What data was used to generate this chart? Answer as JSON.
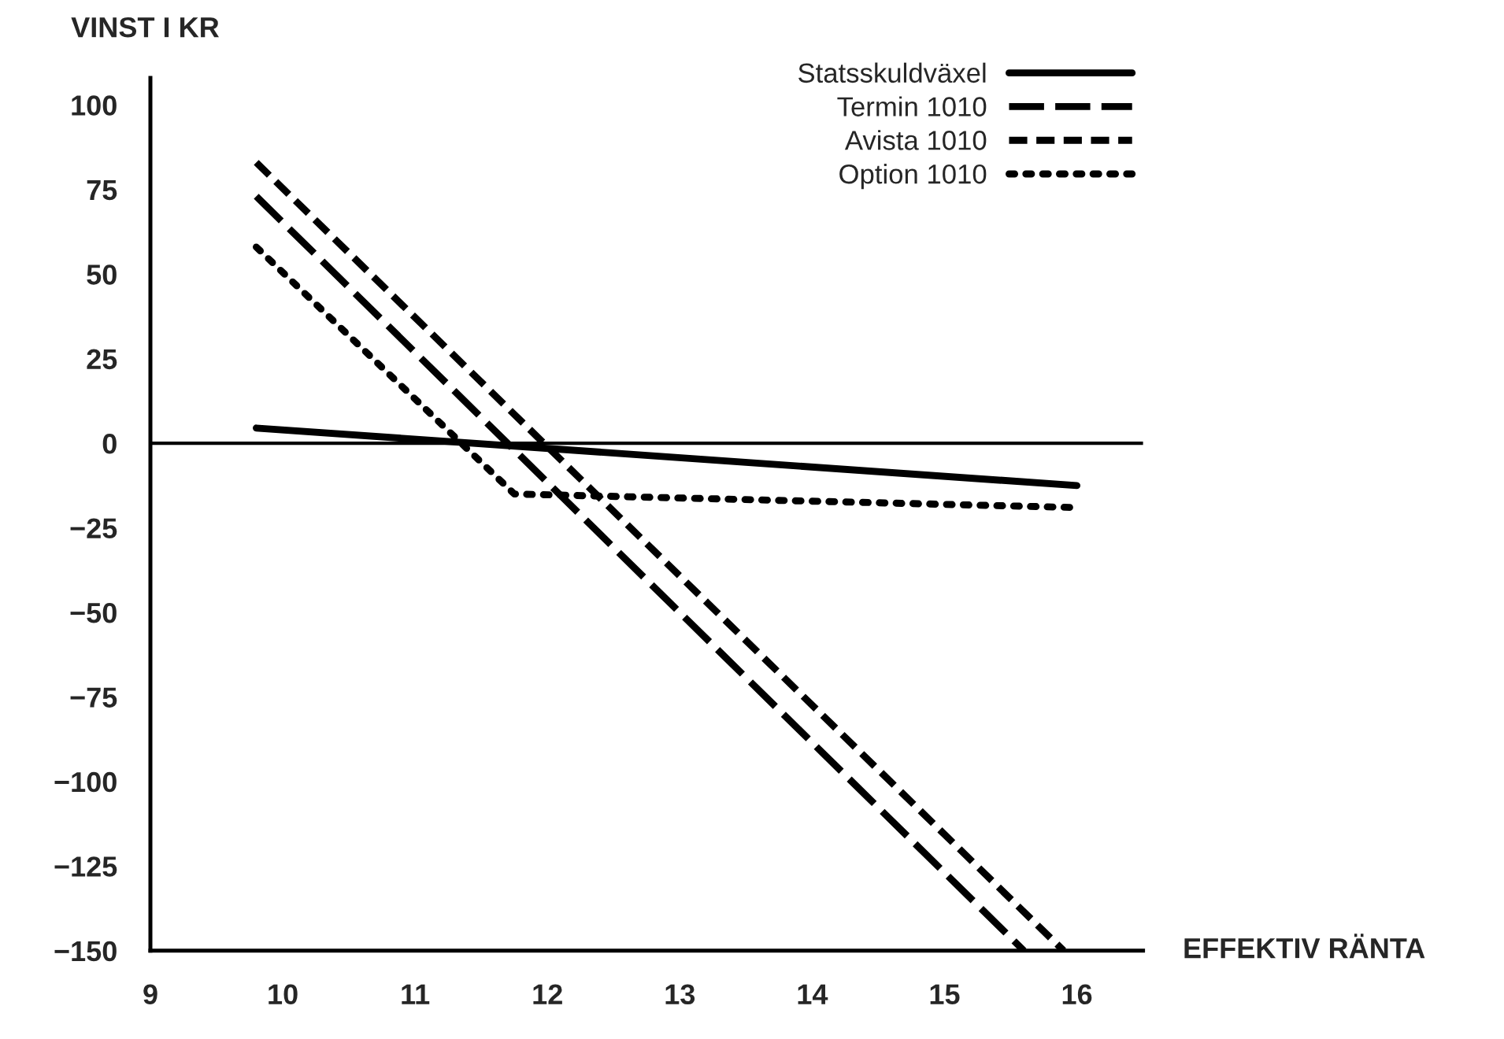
{
  "chart_data": {
    "type": "line",
    "xlabel": "EFFEKTIV RÄNTA",
    "ylabel": "VINST I KR",
    "xlim": [
      9,
      16.5
    ],
    "xticks": [
      9,
      10,
      11,
      12,
      13,
      14,
      15,
      16
    ],
    "ylim": [
      -150,
      108
    ],
    "yticks": [
      -150,
      -125,
      -100,
      -75,
      -50,
      -25,
      0,
      25,
      50,
      75,
      100
    ],
    "grid": false,
    "legend": "top right",
    "ref_lines": [
      {
        "axis": "y",
        "value": 0,
        "color": "#000000",
        "line_style": "solid"
      }
    ],
    "series": [
      {
        "name": "Statsskuldväxel",
        "color": "#000000",
        "line_style": "solid",
        "x": [
          9.8,
          16
        ],
        "values": [
          4.5,
          -12.5
        ]
      },
      {
        "name": "Termin 1010",
        "color": "#000000",
        "line_style": "dashed",
        "x": [
          9.8,
          15.6
        ],
        "values": [
          73,
          -150
        ]
      },
      {
        "name": "Avista 1010",
        "color": "#000000",
        "line_style": "dashed",
        "x": [
          9.8,
          15.9
        ],
        "values": [
          83,
          -150
        ]
      },
      {
        "name": "Option 1010",
        "color": "#000000",
        "line_style": "dotted",
        "x": [
          9.8,
          11.75,
          16
        ],
        "values": [
          58,
          -15,
          -19
        ]
      }
    ]
  }
}
